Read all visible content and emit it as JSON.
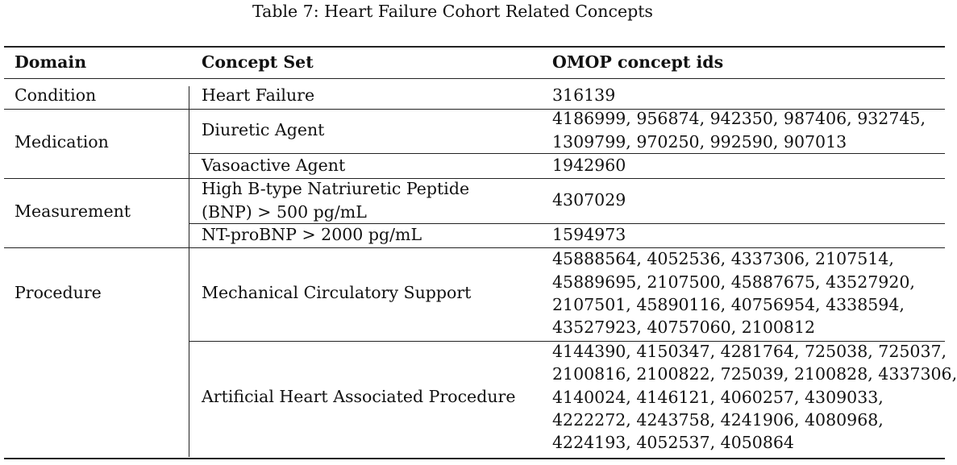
{
  "caption": "Table 7: Heart Failure Cohort Related Concepts",
  "headers": {
    "domain": "Domain",
    "concept_set": "Concept Set",
    "omop": "OMOP concept ids"
  },
  "rows": {
    "condition": {
      "domain": "Condition",
      "concept": "Heart Failure",
      "ids": [
        "316139"
      ]
    },
    "medication": {
      "domain": "Medication",
      "diuretic": {
        "concept": "Diuretic Agent",
        "ids": [
          "4186999, 956874, 942350, 987406, 932745,",
          "1309799, 970250, 992590, 907013"
        ]
      },
      "vasoactive": {
        "concept": "Vasoactive Agent",
        "ids": [
          "1942960"
        ]
      }
    },
    "measurement": {
      "domain": "Measurement",
      "bnp": {
        "concept": [
          "High B-type Natriuretic Peptide",
          "(BNP) > 500 pg/mL"
        ],
        "ids": [
          "4307029"
        ]
      },
      "ntprobnp": {
        "concept": "NT-proBNP > 2000 pg/mL",
        "ids": [
          "1594973"
        ]
      }
    },
    "procedure": {
      "domain": "Procedure",
      "mcs": {
        "concept": "Mechanical Circulatory Support",
        "ids": [
          "45888564, 4052536, 4337306, 2107514,",
          "45889695, 2107500, 45887675, 43527920,",
          "2107501, 45890116, 40756954, 4338594,",
          "43527923, 40757060, 2100812"
        ]
      },
      "artificial_heart": {
        "concept": "Artificial Heart Associated Procedure",
        "ids": [
          "4144390, 4150347, 4281764, 725038, 725037,",
          "2100816, 2100822, 725039, 2100828, 4337306,",
          "4140024, 4146121, 4060257, 4309033,",
          "4222272, 4243758, 4241906, 4080968,",
          "4224193, 4052537, 4050864"
        ]
      }
    }
  }
}
